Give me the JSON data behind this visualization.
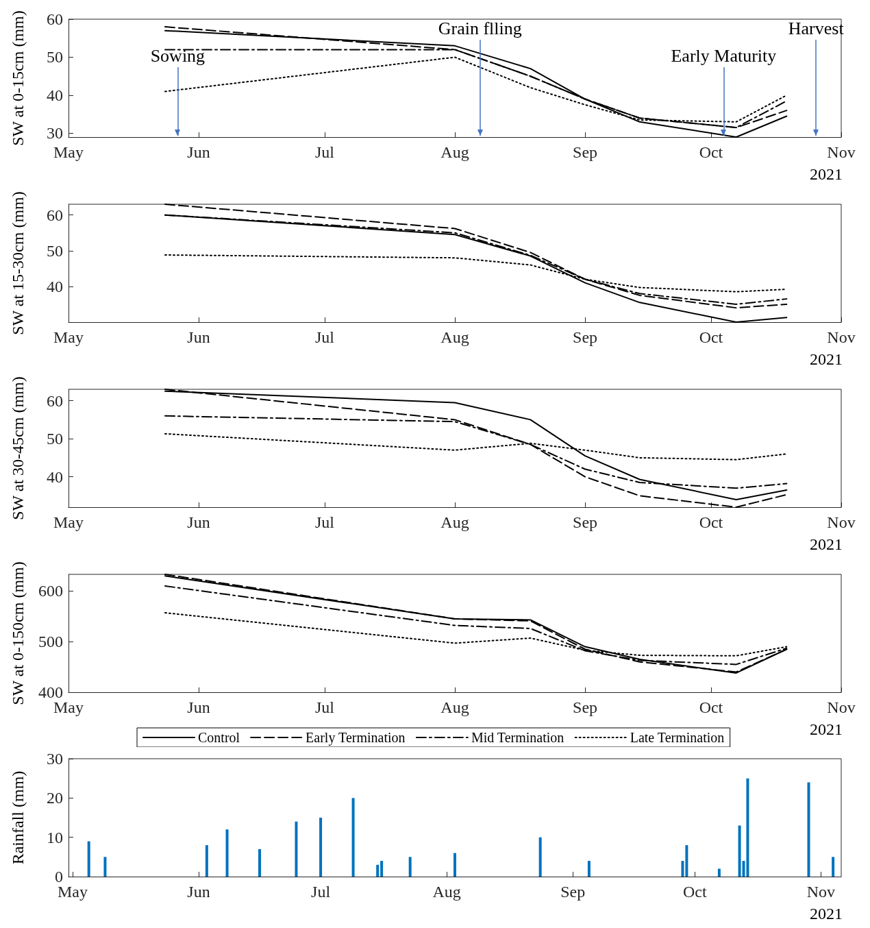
{
  "chart_data": [
    {
      "type": "line",
      "ylabel": "SW at 0-15cm (mm)",
      "x": [
        "2021-05-24",
        "2021-08-01",
        "2021-08-19",
        "2021-09-01",
        "2021-09-14",
        "2021-10-07",
        "2021-10-19"
      ],
      "series": [
        {
          "color": "#000000",
          "line_style": "solid",
          "values": [
            57,
            53,
            47,
            39,
            33,
            29,
            34.5
          ]
        },
        {
          "color": "#000000",
          "line_style": "dashed",
          "values": [
            58,
            52,
            45,
            39,
            34,
            31.5,
            36
          ]
        },
        {
          "color": "#000000",
          "line_style": "dashdot",
          "values": [
            52,
            52,
            45,
            39,
            34,
            31.5,
            38.5
          ]
        },
        {
          "color": "#000000",
          "line_style": "dotted",
          "values": [
            41,
            50,
            42,
            37.5,
            33.5,
            33,
            40
          ]
        }
      ],
      "xlim": [
        "2021-05-01",
        "2021-11-01"
      ],
      "xticks": [
        {
          "value": "2021-05-01",
          "label": "May"
        },
        {
          "value": "2021-06-01",
          "label": "Jun"
        },
        {
          "value": "2021-07-01",
          "label": "Jul"
        },
        {
          "value": "2021-08-01",
          "label": "Aug"
        },
        {
          "value": "2021-09-01",
          "label": "Sep"
        },
        {
          "value": "2021-10-01",
          "label": "Oct"
        },
        {
          "value": "2021-11-01",
          "label": "Nov"
        }
      ],
      "ylim": [
        29,
        60
      ],
      "yticks": [
        30,
        40,
        50,
        60
      ],
      "marker": "none",
      "grid": false,
      "legend": false,
      "annotations": [
        "2021"
      ],
      "ref_lines": [
        {
          "axis": "x",
          "value": "2021-05-27",
          "label": "Sowing",
          "color": "#4472c4"
        },
        {
          "axis": "x",
          "value": "2021-08-07",
          "label": "Grain flling",
          "color": "#4472c4"
        },
        {
          "axis": "x",
          "value": "2021-10-04",
          "label": "Early Maturity",
          "color": "#4472c4"
        },
        {
          "axis": "x",
          "value": "2021-10-26",
          "label": "Harvest",
          "color": "#4472c4"
        }
      ]
    },
    {
      "type": "line",
      "ylabel": "SW at 15-30cm (mm)",
      "x": [
        "2021-05-24",
        "2021-08-01",
        "2021-08-19",
        "2021-09-01",
        "2021-09-14",
        "2021-10-07",
        "2021-10-19"
      ],
      "series": [
        {
          "color": "#000000",
          "line_style": "solid",
          "values": [
            60,
            54.5,
            48.5,
            41,
            35.5,
            30,
            31.3
          ]
        },
        {
          "color": "#000000",
          "line_style": "dashed",
          "values": [
            63,
            56.2,
            49.5,
            42,
            37.5,
            34,
            35
          ]
        },
        {
          "color": "#000000",
          "line_style": "dashdot",
          "values": [
            60,
            55,
            48.7,
            42,
            38,
            35,
            36.5
          ]
        },
        {
          "color": "#000000",
          "line_style": "dotted",
          "values": [
            48.8,
            48,
            46,
            42,
            39.7,
            38.5,
            39.2
          ]
        }
      ],
      "xlim": [
        "2021-05-01",
        "2021-11-01"
      ],
      "xticks": [
        {
          "value": "2021-05-01",
          "label": "May"
        },
        {
          "value": "2021-06-01",
          "label": "Jun"
        },
        {
          "value": "2021-07-01",
          "label": "Jul"
        },
        {
          "value": "2021-08-01",
          "label": "Aug"
        },
        {
          "value": "2021-09-01",
          "label": "Sep"
        },
        {
          "value": "2021-10-01",
          "label": "Oct"
        },
        {
          "value": "2021-11-01",
          "label": "Nov"
        }
      ],
      "ylim": [
        30,
        63
      ],
      "yticks": [
        40,
        50,
        60
      ],
      "marker": "none",
      "grid": false,
      "legend": false,
      "annotations": [
        "2021"
      ]
    },
    {
      "type": "line",
      "ylabel": "SW at 30-45cm (mm)",
      "x": [
        "2021-05-24",
        "2021-08-01",
        "2021-08-19",
        "2021-09-01",
        "2021-09-14",
        "2021-10-07",
        "2021-10-19"
      ],
      "series": [
        {
          "color": "#000000",
          "line_style": "solid",
          "values": [
            62.5,
            59.5,
            55,
            45.5,
            39.3,
            34,
            36.5
          ]
        },
        {
          "color": "#000000",
          "line_style": "dashed",
          "values": [
            63,
            55,
            48.5,
            40,
            35,
            32,
            35.3
          ]
        },
        {
          "color": "#000000",
          "line_style": "dashdot",
          "values": [
            56,
            54.5,
            48.5,
            42,
            38.5,
            37,
            38.2
          ]
        },
        {
          "color": "#000000",
          "line_style": "dotted",
          "values": [
            51.3,
            47,
            48.8,
            47,
            45,
            44.5,
            46
          ]
        }
      ],
      "xlim": [
        "2021-05-01",
        "2021-11-01"
      ],
      "xticks": [
        {
          "value": "2021-05-01",
          "label": "May"
        },
        {
          "value": "2021-06-01",
          "label": "Jun"
        },
        {
          "value": "2021-07-01",
          "label": "Jul"
        },
        {
          "value": "2021-08-01",
          "label": "Aug"
        },
        {
          "value": "2021-09-01",
          "label": "Sep"
        },
        {
          "value": "2021-10-01",
          "label": "Oct"
        },
        {
          "value": "2021-11-01",
          "label": "Nov"
        }
      ],
      "ylim": [
        32,
        63
      ],
      "yticks": [
        40,
        50,
        60
      ],
      "marker": "none",
      "grid": false,
      "legend": false,
      "annotations": [
        "2021"
      ]
    },
    {
      "type": "line",
      "ylabel": "SW at 0-150cm (mm)",
      "x": [
        "2021-05-24",
        "2021-08-01",
        "2021-08-19",
        "2021-09-01",
        "2021-09-14",
        "2021-10-07",
        "2021-10-19"
      ],
      "series": [
        {
          "name": "Control",
          "color": "#000000",
          "line_style": "solid",
          "values": [
            630,
            545,
            543,
            490,
            465,
            438,
            485
          ]
        },
        {
          "name": "Early Termination",
          "color": "#000000",
          "line_style": "dashed",
          "values": [
            633,
            545,
            541,
            485,
            460,
            440,
            485
          ]
        },
        {
          "name": "Mid Termination",
          "color": "#000000",
          "line_style": "dashdot",
          "values": [
            610,
            532,
            526,
            482,
            463,
            455,
            487
          ]
        },
        {
          "name": "Late Termination",
          "color": "#000000",
          "line_style": "dotted",
          "values": [
            557,
            497,
            507,
            483,
            473,
            472,
            490
          ]
        }
      ],
      "xlim": [
        "2021-05-01",
        "2021-11-01"
      ],
      "xticks": [
        {
          "value": "2021-05-01",
          "label": "May"
        },
        {
          "value": "2021-06-01",
          "label": "Jun"
        },
        {
          "value": "2021-07-01",
          "label": "Jul"
        },
        {
          "value": "2021-08-01",
          "label": "Aug"
        },
        {
          "value": "2021-09-01",
          "label": "Sep"
        },
        {
          "value": "2021-10-01",
          "label": "Oct"
        },
        {
          "value": "2021-11-01",
          "label": "Nov"
        }
      ],
      "ylim": [
        400,
        633
      ],
      "yticks": [
        400,
        500,
        600
      ],
      "marker": "none",
      "grid": false,
      "legend": "bottom",
      "annotations": [
        "2021"
      ]
    },
    {
      "type": "bar",
      "ylabel": "Rainfall (mm)",
      "x": [
        "2021-05-05",
        "2021-05-09",
        "2021-06-03",
        "2021-06-08",
        "2021-06-16",
        "2021-06-25",
        "2021-07-01",
        "2021-07-09",
        "2021-07-15",
        "2021-07-16",
        "2021-07-23",
        "2021-08-03",
        "2021-08-24",
        "2021-09-05",
        "2021-09-28",
        "2021-09-29",
        "2021-10-07",
        "2021-10-12",
        "2021-10-13",
        "2021-10-14",
        "2021-10-29",
        "2021-11-04"
      ],
      "series": [
        {
          "color": "#0072bd",
          "values": [
            9,
            5,
            8,
            12,
            7,
            14,
            15,
            20,
            3,
            4,
            5,
            6,
            10,
            4,
            4,
            8,
            2,
            13,
            4,
            25,
            24,
            5
          ]
        }
      ],
      "xlim": [
        "2021-04-30",
        "2021-11-06"
      ],
      "xticks": [
        {
          "value": "2021-05-01",
          "label": "May"
        },
        {
          "value": "2021-06-01",
          "label": "Jun"
        },
        {
          "value": "2021-07-01",
          "label": "Jul"
        },
        {
          "value": "2021-08-01",
          "label": "Aug"
        },
        {
          "value": "2021-09-01",
          "label": "Sep"
        },
        {
          "value": "2021-10-01",
          "label": "Oct"
        },
        {
          "value": "2021-11-01",
          "label": "Nov"
        }
      ],
      "ylim": [
        0,
        30
      ],
      "yticks": [
        0,
        10,
        20,
        30
      ],
      "grid": false,
      "legend": false,
      "annotations": [
        "2021"
      ]
    }
  ]
}
